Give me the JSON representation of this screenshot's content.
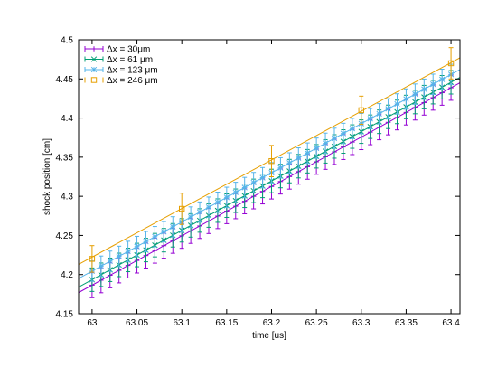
{
  "chart_data": {
    "type": "line",
    "xlabel": "time [us]",
    "ylabel": "shock position [cm]",
    "xlim": [
      62.985,
      63.41
    ],
    "ylim": [
      4.15,
      4.5
    ],
    "xticks": [
      "63",
      "63.05",
      "63.1",
      "63.15",
      "63.2",
      "63.25",
      "63.3",
      "63.35",
      "63.4"
    ],
    "yticks": [
      "4.15",
      "4.2",
      "4.25",
      "4.3",
      "4.35",
      "4.4",
      "4.45",
      "4.5"
    ],
    "grid": false,
    "legend_position": "top-left",
    "series": [
      {
        "name": "Δx = 30μm",
        "color": "#9400d3",
        "marker": "plus",
        "x_start": 62.985,
        "x_end": 63.41,
        "y_start": 4.177,
        "y_end": 4.445,
        "marker_x_start": 63.0,
        "marker_x_step": 0.01,
        "marker_count": 41,
        "error": 0.016
      },
      {
        "name": "Δx = 61 μm",
        "color": "#009e73",
        "marker": "cross",
        "x_start": 62.985,
        "x_end": 63.41,
        "y_start": 4.184,
        "y_end": 4.452,
        "marker_x_start": 63.0,
        "marker_x_step": 0.01,
        "marker_count": 41,
        "error": 0.015
      },
      {
        "name": "Δx = 123 μm",
        "color": "#56b4e9",
        "marker": "star",
        "x_start": 62.985,
        "x_end": 63.41,
        "y_start": 4.195,
        "y_end": 4.462,
        "marker_x_start": 63.0,
        "marker_x_step": 0.01,
        "marker_count": 41,
        "error": 0.013
      },
      {
        "name": "Δx = 246 μm",
        "color": "#e69f00",
        "marker": "square",
        "x_start": 62.985,
        "x_end": 63.41,
        "y_start": 4.213,
        "y_end": 4.477,
        "points": [
          {
            "x": 63.0,
            "y": 4.22,
            "err": 0.017
          },
          {
            "x": 63.1,
            "y": 4.284,
            "err": 0.02
          },
          {
            "x": 63.2,
            "y": 4.345,
            "err": 0.02
          },
          {
            "x": 63.3,
            "y": 4.41,
            "err": 0.018
          },
          {
            "x": 63.4,
            "y": 4.47,
            "err": 0.02
          }
        ]
      }
    ]
  }
}
